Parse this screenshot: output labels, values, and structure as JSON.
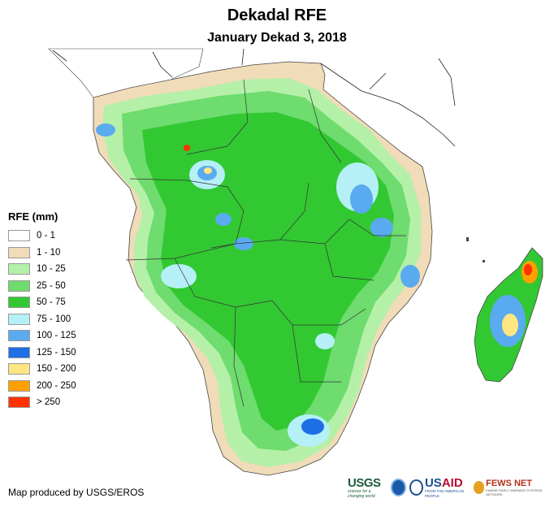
{
  "map": {
    "title": "Dekadal RFE",
    "subtitle": "January Dekad 3, 2018",
    "region": "Southern and Central Africa",
    "credit": "Map produced by USGS/EROS"
  },
  "legend": {
    "title": "RFE (mm)",
    "items": [
      {
        "label": "0 - 1",
        "color": "#ffffff"
      },
      {
        "label": "1 - 10",
        "color": "#f0dcb8"
      },
      {
        "label": "10 - 25",
        "color": "#b4f0a8"
      },
      {
        "label": "25 - 50",
        "color": "#6edc6e"
      },
      {
        "label": "50 - 75",
        "color": "#32c832"
      },
      {
        "label": "75 - 100",
        "color": "#b4f0f5"
      },
      {
        "label": "100 - 125",
        "color": "#5aaaf0"
      },
      {
        "label": "125 - 150",
        "color": "#1e6ee6"
      },
      {
        "label": "150 - 200",
        "color": "#ffe682"
      },
      {
        "label": "200 - 250",
        "color": "#ffa000"
      },
      {
        "label": "> 250",
        "color": "#ff3200"
      }
    ]
  },
  "logos": {
    "usgs": {
      "word": "USGS",
      "tagline": "science for a changing world"
    },
    "noaa": {
      "name": "NOAA"
    },
    "usaid": {
      "us": "US",
      "aid": "AID",
      "tagline": "FROM THE AMERICAN PEOPLE"
    },
    "fews": {
      "word": "FEWS NET",
      "tagline": "FAMINE EARLY WARNING SYSTEMS NETWORK"
    }
  }
}
